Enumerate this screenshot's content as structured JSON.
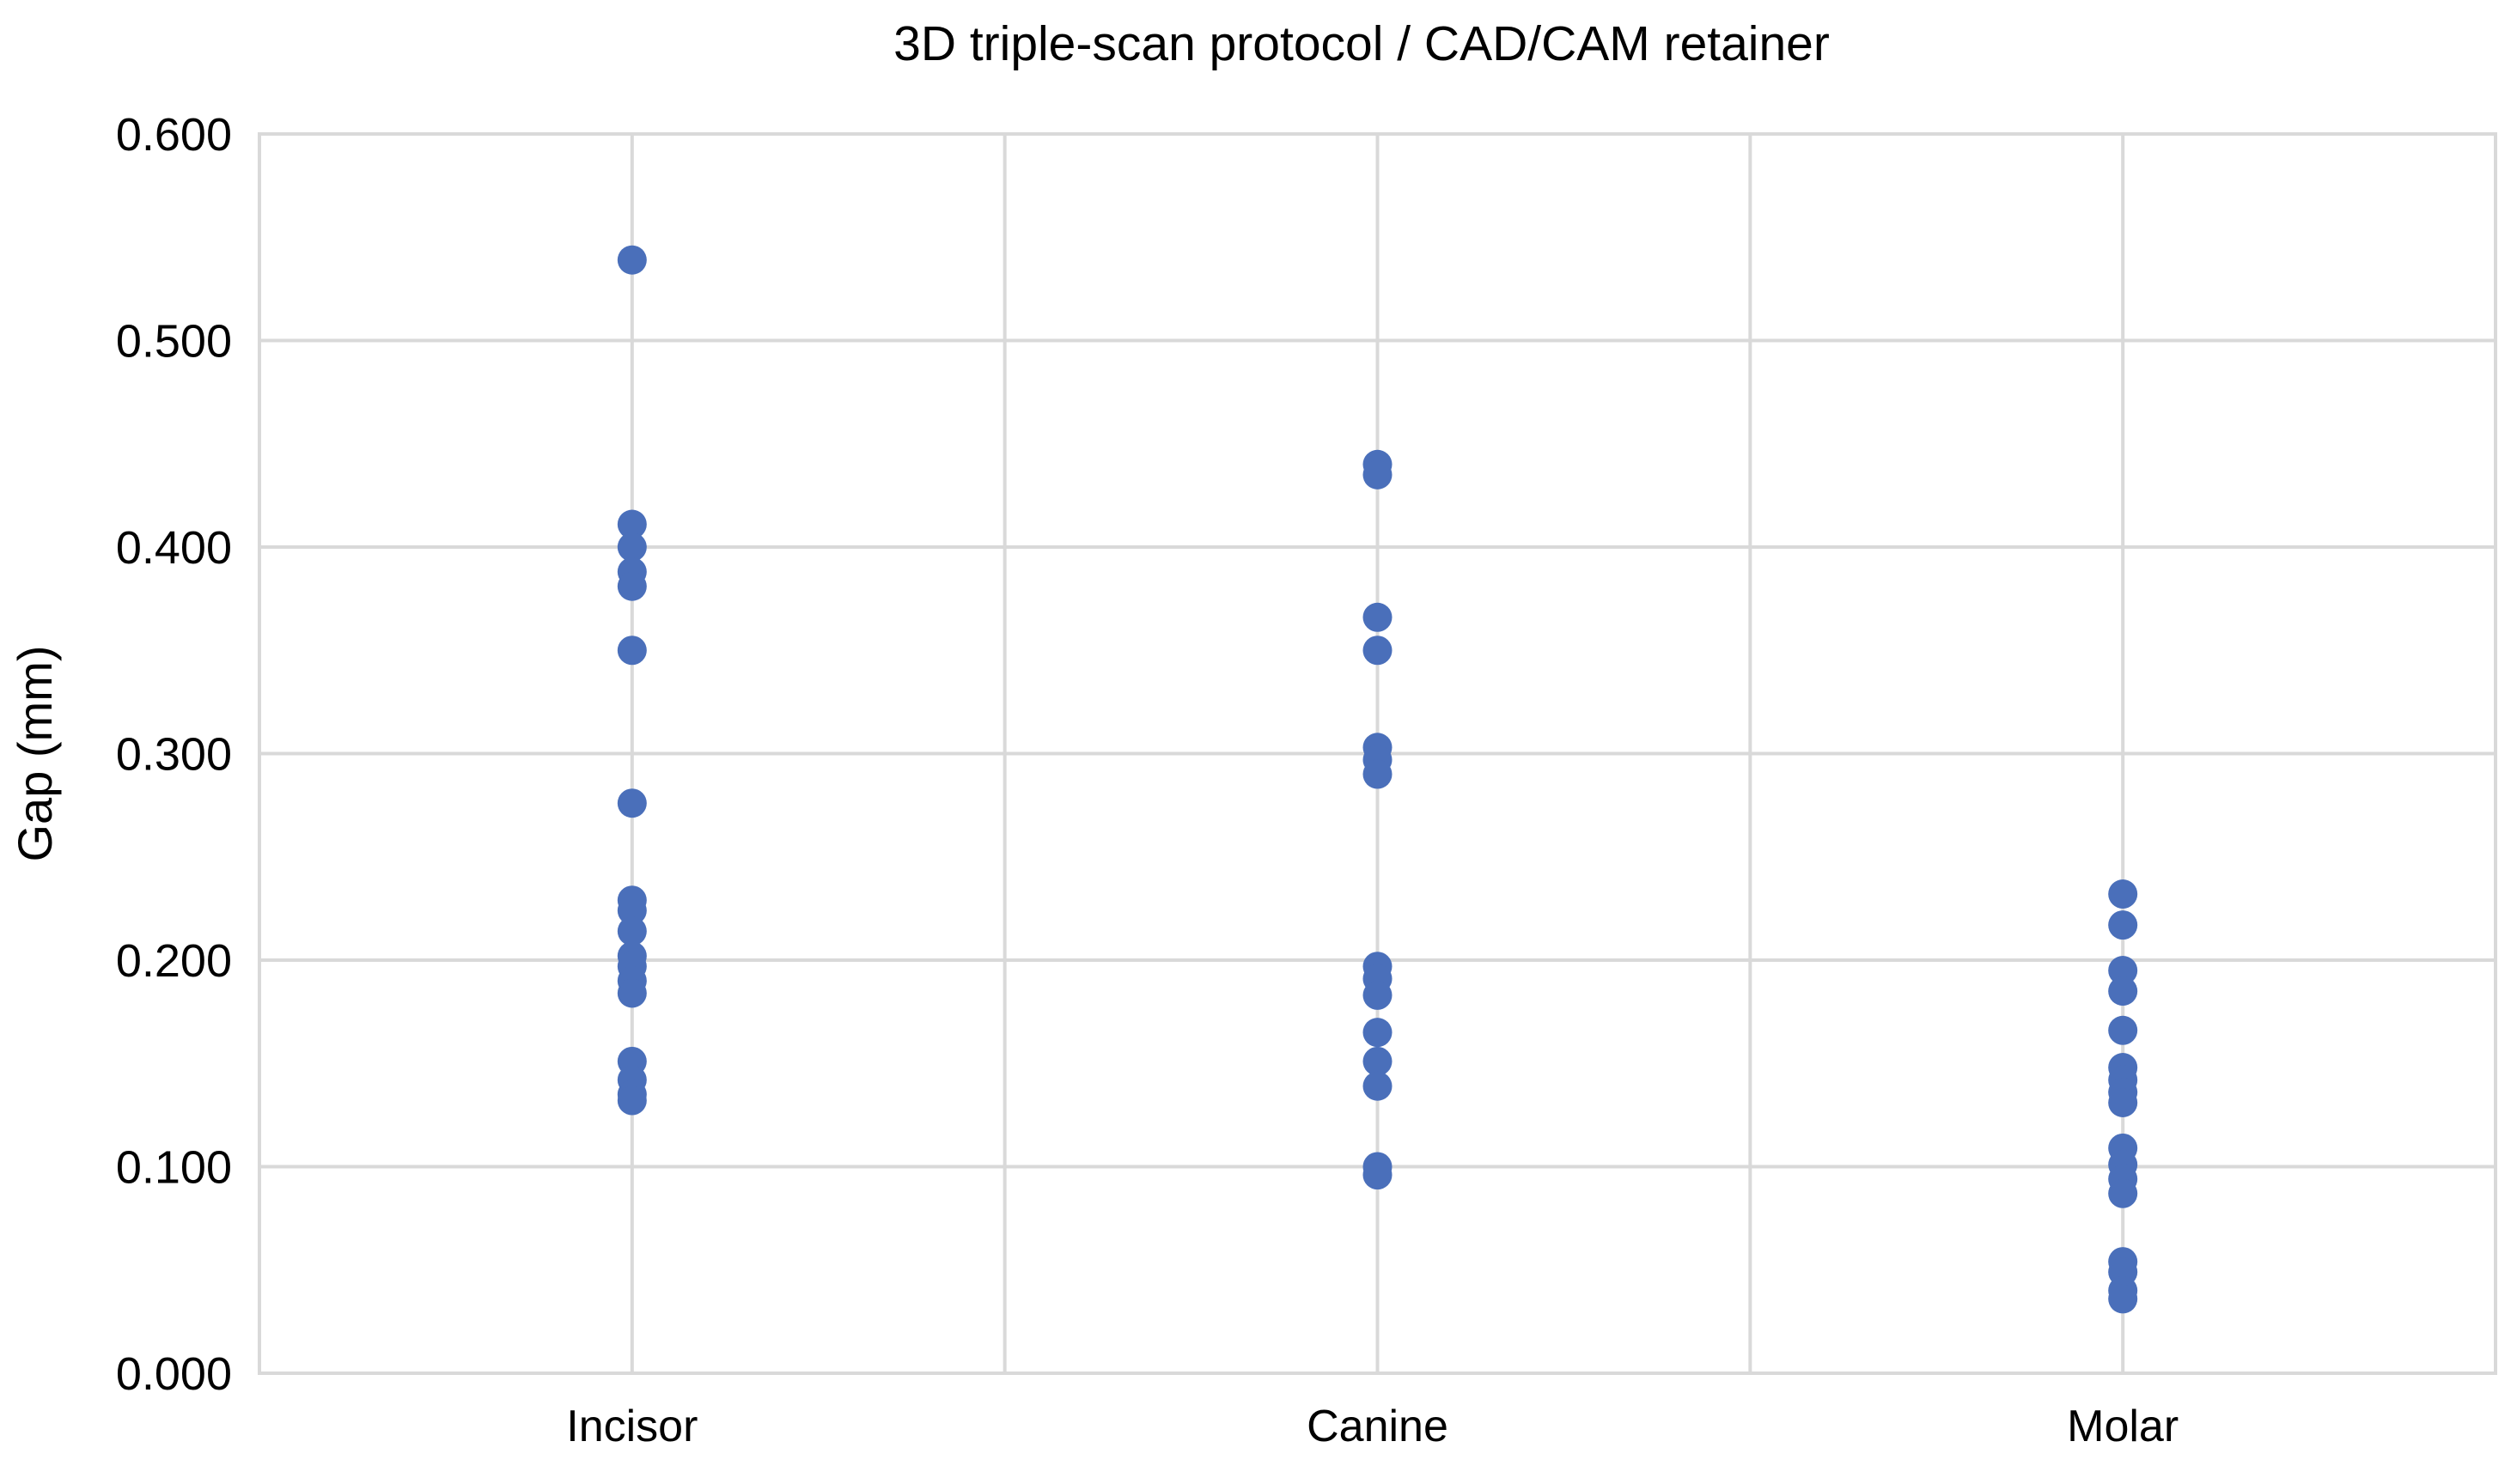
{
  "chart_data": {
    "type": "scatter",
    "title": "3D triple-scan protocol / CAD/CAM retainer",
    "xlabel": "",
    "ylabel": "Gap (mm)",
    "categories": [
      "Incisor",
      "Canine",
      "Molar"
    ],
    "ylim": [
      0,
      0.6
    ],
    "yticks": [
      "0.000",
      "0.100",
      "0.200",
      "0.300",
      "0.400",
      "0.500",
      "0.600"
    ],
    "grid": true,
    "legend": "none",
    "point_color": "#4a6fba",
    "series": [
      {
        "category": "Incisor",
        "values": [
          0.539,
          0.411,
          0.4,
          0.388,
          0.381,
          0.35,
          0.276,
          0.229,
          0.224,
          0.214,
          0.202,
          0.197,
          0.19,
          0.184,
          0.151,
          0.142,
          0.135,
          0.132
        ]
      },
      {
        "category": "Canine",
        "values": [
          0.44,
          0.435,
          0.366,
          0.35,
          0.303,
          0.297,
          0.29,
          0.197,
          0.191,
          0.183,
          0.165,
          0.151,
          0.139,
          0.1,
          0.096
        ]
      },
      {
        "category": "Molar",
        "values": [
          0.232,
          0.217,
          0.195,
          0.185,
          0.166,
          0.148,
          0.142,
          0.136,
          0.131,
          0.109,
          0.101,
          0.094,
          0.087,
          0.054,
          0.049,
          0.04,
          0.036
        ]
      }
    ]
  }
}
